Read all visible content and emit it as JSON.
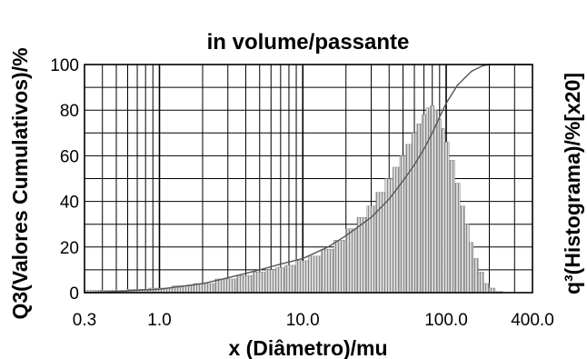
{
  "chart_data": {
    "type": "bar",
    "title": "in volume/passante",
    "xlabel": "x (Diâmetro)/mu",
    "ylabel_left": "Q3(Valores Cumulativos)/%",
    "ylabel_right": "q³(Histograma)/%[x20]",
    "x_scale": "log",
    "xlim": [
      0.3,
      400.0
    ],
    "ylim": [
      0,
      100
    ],
    "x_ticks": [
      "0.3",
      "1.0",
      "10.0",
      "100.0",
      "400.0"
    ],
    "y_ticks": [
      "0",
      "20",
      "40",
      "60",
      "80",
      "100"
    ],
    "grid": true,
    "series": [
      {
        "kind": "histogram",
        "x": [
          0.3,
          0.5,
          0.7,
          1.0,
          1.5,
          2.0,
          3.0,
          4.0,
          5.0,
          6.0,
          7.0,
          8.0,
          10.0,
          12.0,
          15.0,
          18.0,
          22.0,
          26.0,
          30.0,
          35.0,
          40.0,
          45.0,
          50.0,
          55.0,
          60.0,
          65.0,
          70.0,
          75.0,
          80.0,
          85.0,
          90.0,
          95.0,
          100.0,
          110.0,
          120.0,
          130.0,
          140.0,
          150.0,
          160.0,
          175.0,
          190.0,
          210.0,
          230.0
        ],
        "values": [
          1,
          1,
          1.5,
          2,
          3,
          4,
          6,
          7.5,
          9,
          10,
          11,
          12,
          14,
          16,
          19,
          23,
          28,
          33,
          38,
          44,
          50,
          55,
          60,
          65,
          70,
          74,
          78,
          81,
          82,
          80,
          76,
          72,
          66,
          58,
          48,
          38,
          30,
          22,
          15,
          9,
          4,
          2,
          0.5
        ]
      },
      {
        "kind": "cumulative",
        "x": [
          0.3,
          0.5,
          1.0,
          2.0,
          3.0,
          5.0,
          7.0,
          10.0,
          15.0,
          20.0,
          30.0,
          40.0,
          50.0,
          60.0,
          70.0,
          80.0,
          90.0,
          100.0,
          120.0,
          150.0,
          180.0,
          200.0,
          250.0,
          300.0,
          400.0
        ],
        "values": [
          0,
          0.5,
          1.5,
          4,
          6.5,
          10,
          12.5,
          15,
          20,
          25,
          33,
          41,
          49,
          56,
          63,
          70,
          77,
          83,
          91,
          97,
          99.5,
          100,
          100,
          100,
          100
        ]
      }
    ]
  }
}
